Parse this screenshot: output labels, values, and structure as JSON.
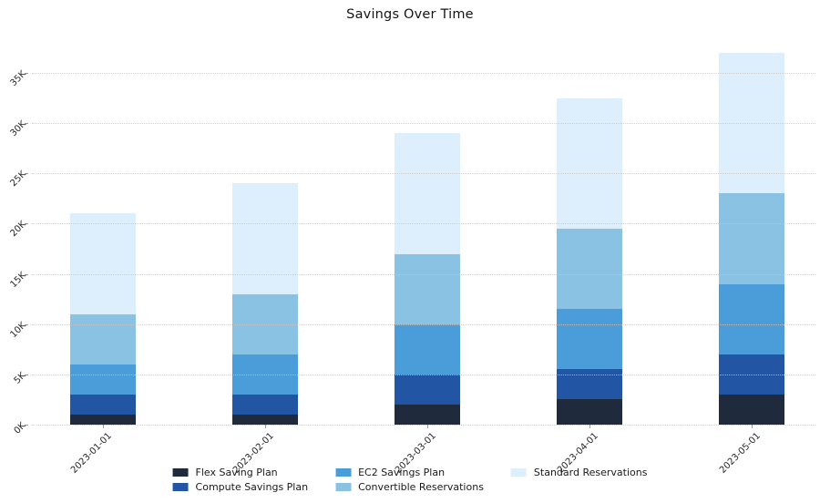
{
  "title": "Savings Over Time",
  "chart_data": {
    "type": "bar",
    "stacked": true,
    "title": "Savings Over Time",
    "xlabel": "",
    "ylabel": "",
    "categories": [
      "2023-01-01",
      "2023-02-01",
      "2023-03-01",
      "2023-04-01",
      "2023-05-01"
    ],
    "series": [
      {
        "name": "Flex Saving Plan",
        "color": "#1f2b3d",
        "values": [
          1000,
          1000,
          2000,
          2500,
          3000
        ]
      },
      {
        "name": "Compute Savings Plan",
        "color": "#2255a4",
        "values": [
          2000,
          2000,
          3000,
          3000,
          4000
        ]
      },
      {
        "name": "EC2 Savings Plan",
        "color": "#4a9dd9",
        "values": [
          3000,
          4000,
          5000,
          6000,
          7000
        ]
      },
      {
        "name": "Convertible Reservations",
        "color": "#89c2e2",
        "values": [
          5000,
          6000,
          7000,
          8000,
          9000
        ]
      },
      {
        "name": "Standard Reservations",
        "color": "#ddeffc",
        "values": [
          10000,
          11000,
          12000,
          13000,
          14000
        ]
      }
    ],
    "stack_totals": [
      21000,
      24000,
      29000,
      32500,
      37000
    ],
    "ylim": [
      0,
      37000
    ],
    "yticks": {
      "values": [
        0,
        5000,
        10000,
        15000,
        20000,
        25000,
        30000,
        35000
      ],
      "labels": [
        "0K",
        "5K",
        "10K",
        "15K",
        "20K",
        "25K",
        "30K",
        "35K"
      ]
    },
    "tick_angle_degrees": 45,
    "grid": "horizontal dotted",
    "legend_position": "bottom-center",
    "legend_columns": 3
  }
}
